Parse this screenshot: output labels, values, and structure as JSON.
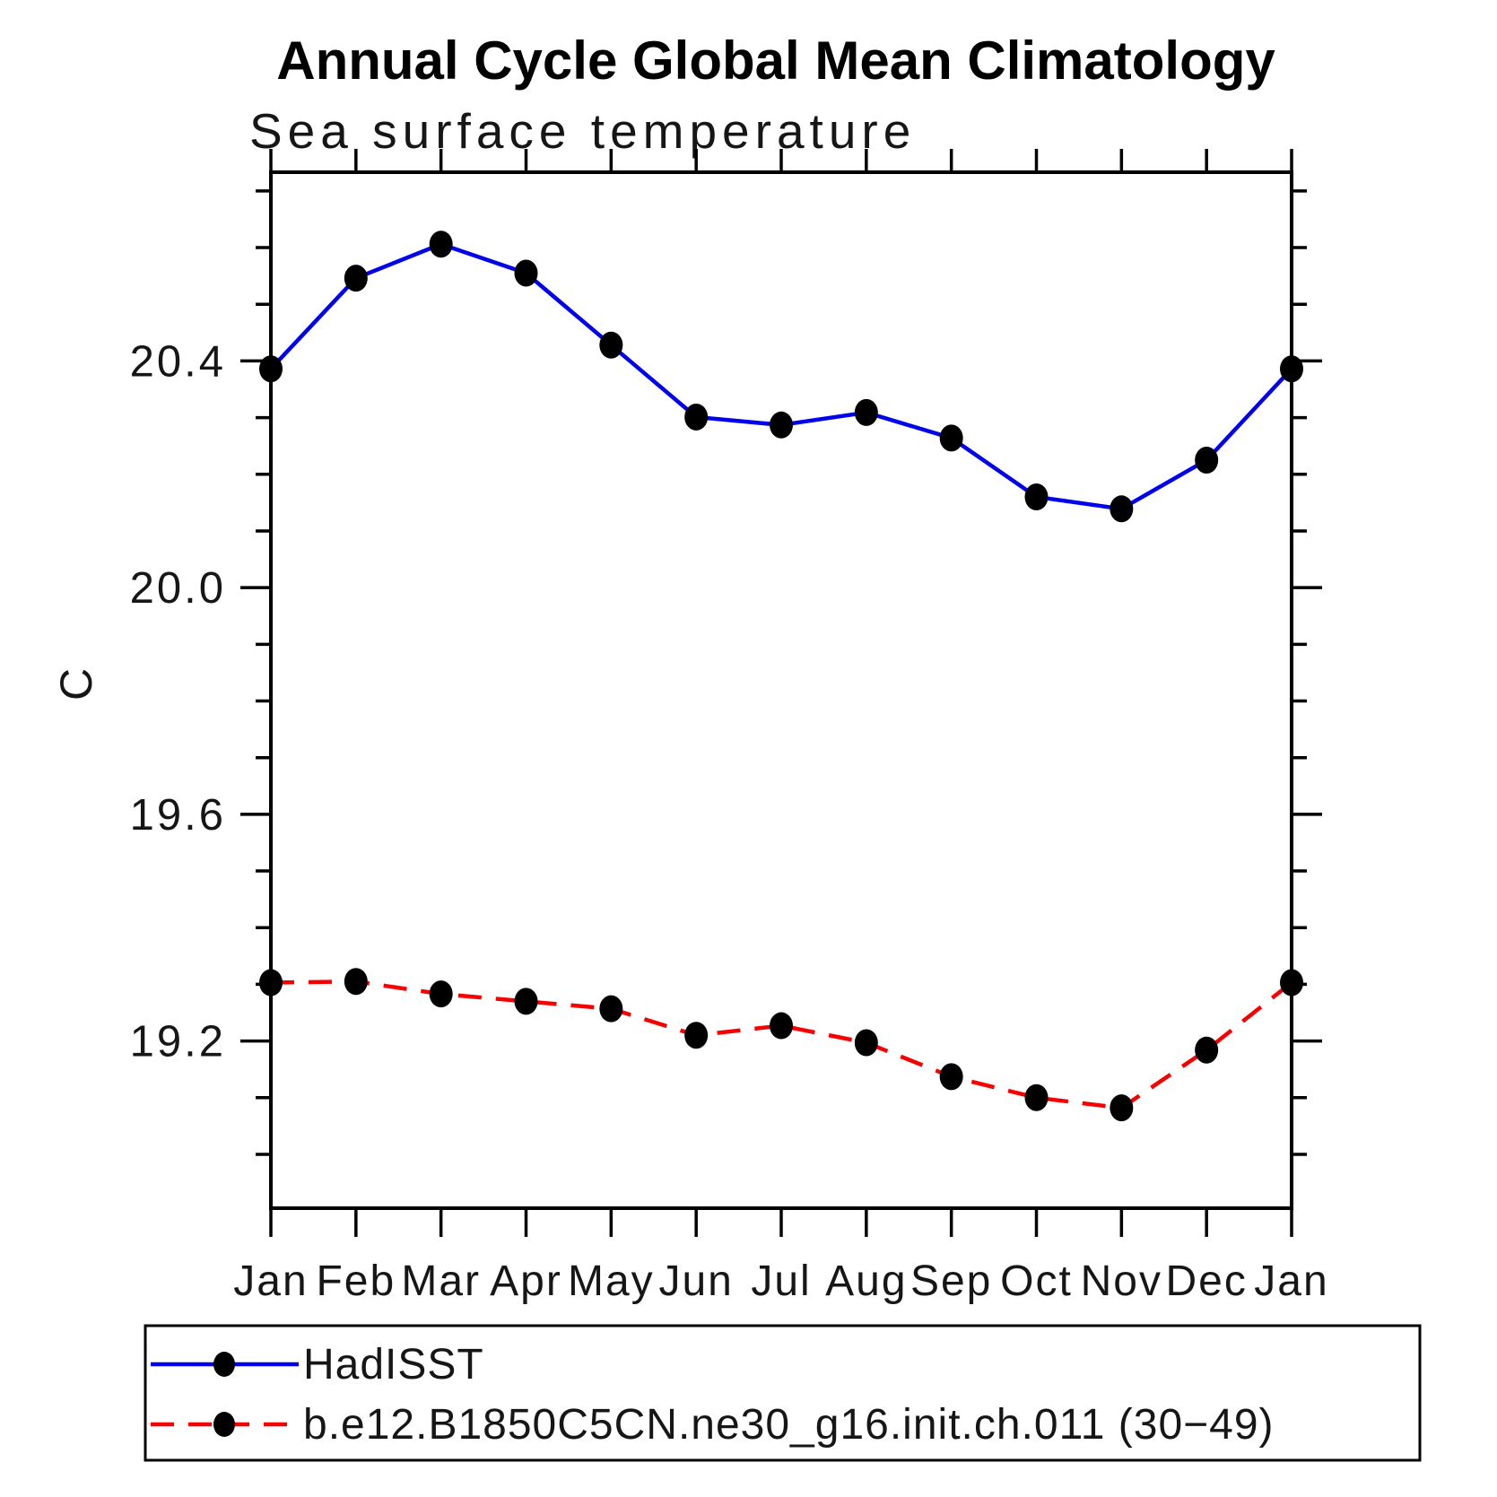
{
  "page": {
    "background": "#ffffff"
  },
  "chart_data": {
    "type": "line",
    "title": "Annual Cycle Global Mean Climatology",
    "subtitle": "Sea surface temperature",
    "ylabel": "C",
    "categories": [
      "Jan",
      "Feb",
      "Mar",
      "Apr",
      "May",
      "Jun",
      "Jul",
      "Aug",
      "Sep",
      "Oct",
      "Nov",
      "Dec",
      "Jan"
    ],
    "y_axis": {
      "major_ticks": [
        19.2,
        19.6,
        20.0,
        20.4
      ],
      "major_tick_labels": [
        "19.2",
        "19.6",
        "20.0",
        "20.4"
      ],
      "minor_step": 0.1,
      "minor_range": [
        19.0,
        20.7
      ],
      "ylim": [
        18.905,
        20.733
      ]
    },
    "grid": "off",
    "legend_position": "bottom-left-box",
    "series": [
      {
        "name": "HadISST",
        "color": "#0000ee",
        "line_style": "solid",
        "marker": "filled-circle",
        "marker_color": "#000000",
        "values": [
          20.386,
          20.546,
          20.606,
          20.555,
          20.428,
          20.301,
          20.287,
          20.309,
          20.264,
          20.16,
          20.139,
          20.225,
          20.386
        ]
      },
      {
        "name": "b.e12.B1850C5CN.ne30_g16.init.ch.011 (30−49)",
        "color": "#f80000",
        "line_style": "dashed",
        "marker": "filled-circle",
        "marker_color": "#000000",
        "values": [
          19.303,
          19.305,
          19.283,
          19.27,
          19.257,
          19.21,
          19.227,
          19.197,
          19.137,
          19.1,
          19.082,
          19.184,
          19.303
        ]
      }
    ]
  }
}
